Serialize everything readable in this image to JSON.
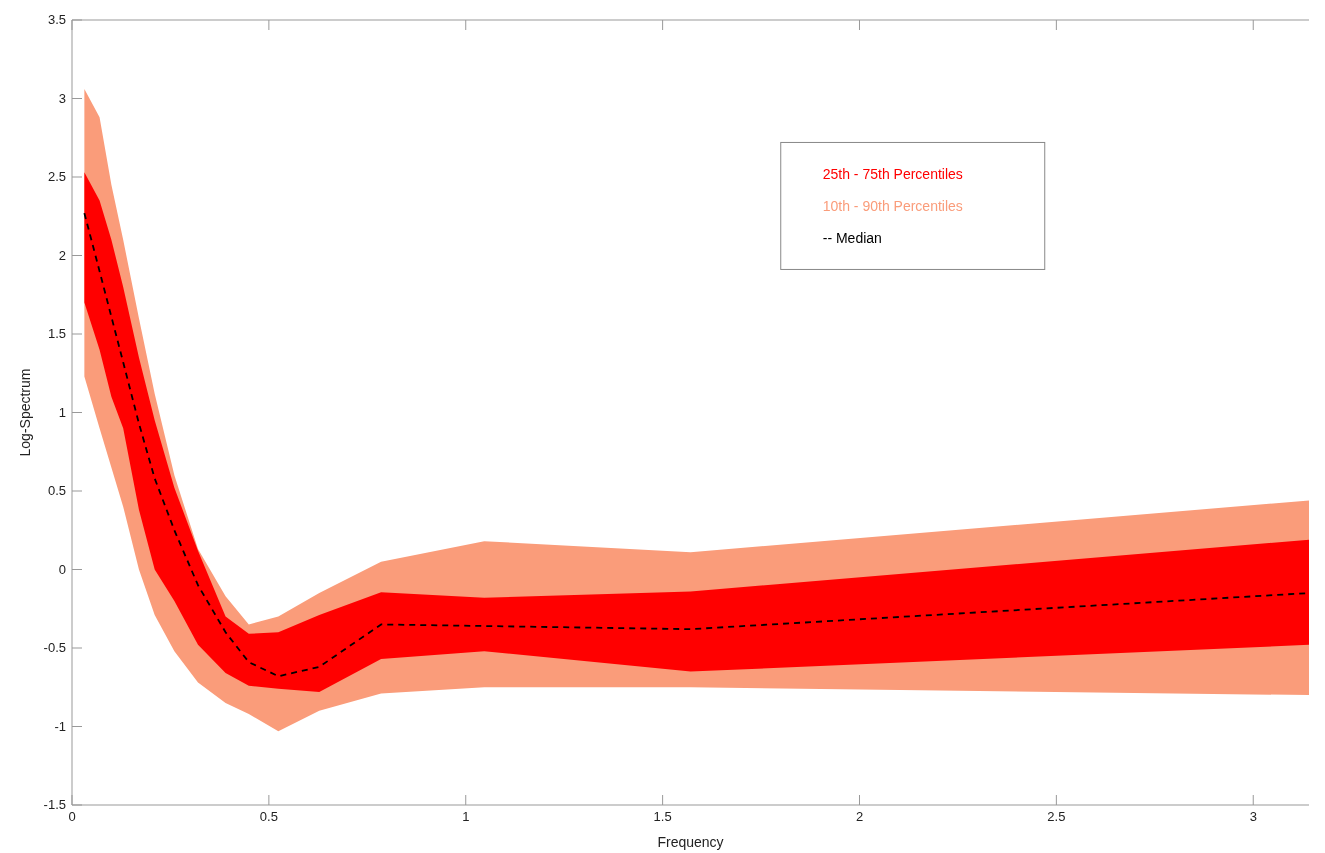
{
  "chart_data": {
    "type": "line",
    "xlabel": "Frequency",
    "ylabel": "Log-Spectrum",
    "x": [
      0.0314,
      0.07,
      0.1,
      0.13,
      0.17,
      0.21,
      0.26,
      0.32,
      0.39,
      0.449,
      0.524,
      0.628,
      0.785,
      1.047,
      1.571,
      3.1416
    ],
    "xlim": [
      0,
      3.1416
    ],
    "xticks": [
      0,
      0.5,
      1,
      1.5,
      2,
      2.5,
      3
    ],
    "ylim": [
      -1.5,
      3.5
    ],
    "yticks": [
      -1.5,
      -1,
      -0.5,
      0,
      0.5,
      1,
      1.5,
      2,
      2.5,
      3,
      3.5
    ],
    "grid": false,
    "legend": "top right",
    "series": [
      {
        "name": "25th - 75th Percentiles",
        "color": "#ff0000",
        "values": [
          null,
          null,
          null,
          null,
          null,
          null,
          null,
          null,
          null,
          null,
          null,
          null,
          null,
          null,
          null,
          null
        ],
        "lower": [
          1.7,
          1.4,
          1.1,
          0.9,
          0.38,
          0.0,
          -0.2,
          -0.48,
          -0.66,
          -0.74,
          -0.76,
          -0.78,
          -0.57,
          -0.52,
          -0.65,
          -0.48
        ],
        "upper": [
          2.53,
          2.35,
          2.1,
          1.8,
          1.35,
          0.95,
          0.52,
          0.12,
          -0.3,
          -0.41,
          -0.4,
          -0.29,
          -0.145,
          -0.18,
          -0.14,
          0.19
        ]
      },
      {
        "name": "10th - 90th Percentiles",
        "color": "#fa9c7a",
        "values": [
          null,
          null,
          null,
          null,
          null,
          null,
          null,
          null,
          null,
          null,
          null,
          null,
          null,
          null,
          null,
          null
        ],
        "lower": [
          1.23,
          0.9,
          0.65,
          0.4,
          0.0,
          -0.29,
          -0.52,
          -0.72,
          -0.85,
          -0.92,
          -1.03,
          -0.9,
          -0.79,
          -0.75,
          -0.75,
          -0.8
        ],
        "upper": [
          3.06,
          2.88,
          2.45,
          2.1,
          1.6,
          1.12,
          0.6,
          0.13,
          -0.17,
          -0.35,
          -0.3,
          -0.15,
          0.05,
          0.18,
          0.11,
          0.44
        ]
      },
      {
        "name": "-- Median",
        "color": "#000000",
        "line_style": "dashed",
        "values": [
          2.27,
          1.9,
          1.61,
          1.32,
          0.93,
          0.58,
          0.25,
          -0.1,
          -0.4,
          -0.59,
          -0.68,
          -0.62,
          -0.35,
          -0.36,
          -0.38,
          -0.15
        ]
      }
    ]
  }
}
